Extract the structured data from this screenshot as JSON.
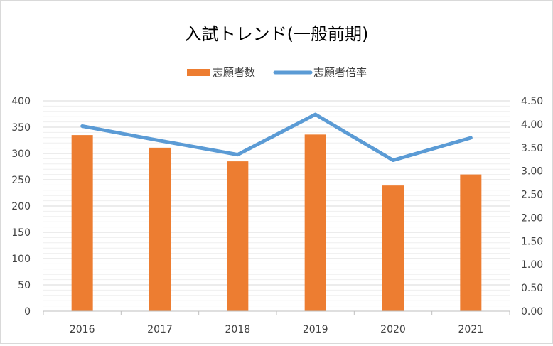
{
  "chart_data": {
    "type": "bar",
    "title": "入試トレンド(一般前期)",
    "categories": [
      "2016",
      "2017",
      "2018",
      "2019",
      "2020",
      "2021"
    ],
    "series": [
      {
        "name": "志願者数",
        "type": "bar",
        "axis": "left",
        "color": "#ed7d31",
        "values": [
          335,
          311,
          285,
          336,
          239,
          260
        ]
      },
      {
        "name": "志願者倍率",
        "type": "line",
        "axis": "right",
        "color": "#5b9bd5",
        "values": [
          3.96,
          3.65,
          3.35,
          4.21,
          3.23,
          3.71
        ]
      }
    ],
    "y_left": {
      "min": 0,
      "max": 400,
      "step": 50,
      "ticks": [
        "0",
        "50",
        "100",
        "150",
        "200",
        "250",
        "300",
        "350",
        "400"
      ]
    },
    "y_right": {
      "min": 0,
      "max": 4.5,
      "step": 0.5,
      "ticks": [
        "0.00",
        "0.50",
        "1.00",
        "1.50",
        "2.00",
        "2.50",
        "3.00",
        "3.50",
        "4.00",
        "4.50"
      ]
    },
    "grid": true,
    "legend": "top"
  }
}
